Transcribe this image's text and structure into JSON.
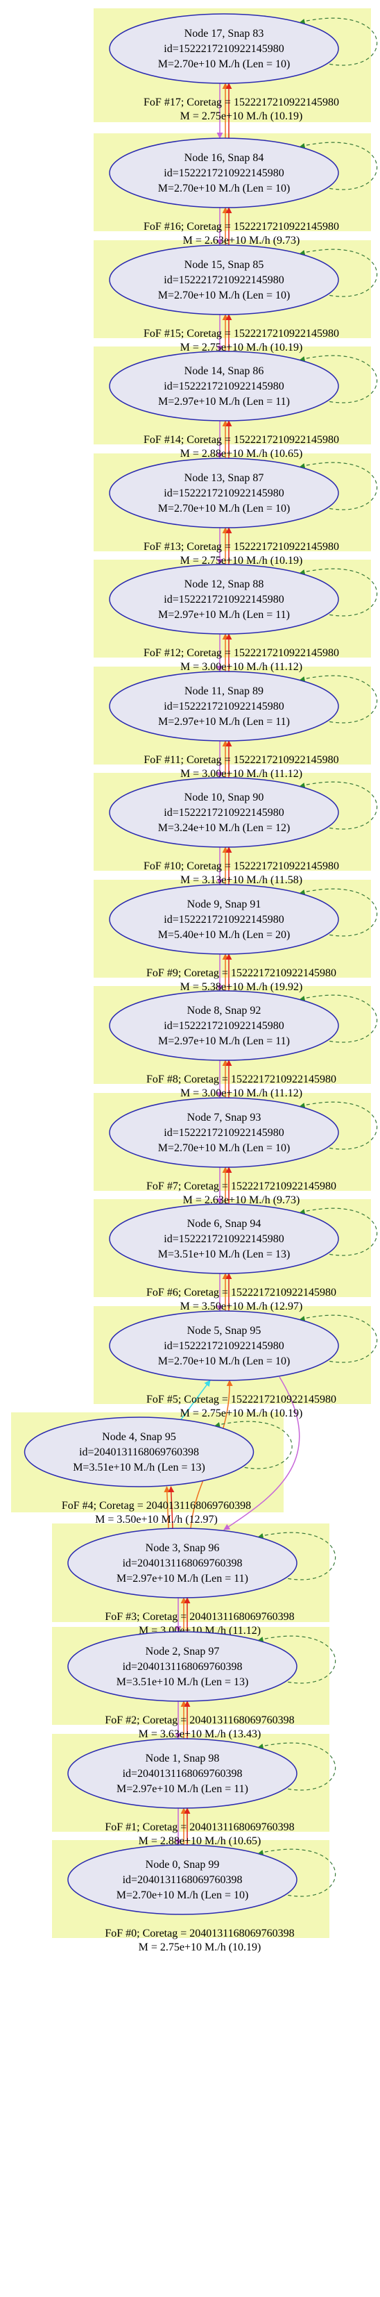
{
  "colors": {
    "cluster_fill": "#f3f8b6",
    "node_fill": "#e6e6f2",
    "node_stroke": "#2a2ab0",
    "edge_orange": "#ef6f1f",
    "edge_red": "#e0241b",
    "edge_violet": "#c766d8",
    "edge_green": "#2a8a2a",
    "edge_cyan": "#3adbe6",
    "self_loop": "#3a7a3a"
  },
  "nodes": [
    {
      "title": "Node 17, Snap 83",
      "id": "id=152221721092214598​0",
      "mass": "M=2.70e+10 M./h (Len = 10)",
      "fof": "FoF #17; Coretag = 152221721092214598​0",
      "fof_mass": "M = 2.75e+10 M./h (10.19)"
    },
    {
      "title": "Node 16, Snap 84",
      "id": "id=152221721092214598​0",
      "mass": "M=2.70e+10 M./h (Len = 10)",
      "fof": "FoF #16; Coretag = 152221721092214598​0",
      "fof_mass": "M = 2.63e+10 M./h (9.73)"
    },
    {
      "title": "Node 15, Snap 85",
      "id": "id=152221721092214598​0",
      "mass": "M=2.70e+10 M./h (Len = 10)",
      "fof": "FoF #15; Coretag = 152221721092214598​0",
      "fof_mass": "M = 2.75e+10 M./h (10.19)"
    },
    {
      "title": "Node 14, Snap 86",
      "id": "id=152221721092214598​0",
      "mass": "M=2.97e+10 M./h (Len = 11)",
      "fof": "FoF #14; Coretag = 152221721092214598​0",
      "fof_mass": "M = 2.88e+10 M./h (10.65)"
    },
    {
      "title": "Node 13, Snap 87",
      "id": "id=152221721092214598​0",
      "mass": "M=2.70e+10 M./h (Len = 10)",
      "fof": "FoF #13; Coretag = 152221721092214598​0",
      "fof_mass": "M = 2.75e+10 M./h (10.19)"
    },
    {
      "title": "Node 12, Snap 88",
      "id": "id=152221721092214598​0",
      "mass": "M=2.97e+10 M./h (Len = 11)",
      "fof": "FoF #12; Coretag = 152221721092214598​0",
      "fof_mass": "M = 3.00e+10 M./h (11.12)"
    },
    {
      "title": "Node 11, Snap 89",
      "id": "id=152221721092214598​0",
      "mass": "M=2.97e+10 M./h (Len = 11)",
      "fof": "FoF #11; Coretag = 152221721092214598​0",
      "fof_mass": "M = 3.00e+10 M./h (11.12)"
    },
    {
      "title": "Node 10, Snap 90",
      "id": "id=152221721092214598​0",
      "mass": "M=3.24e+10 M./h (Len = 12)",
      "fof": "FoF #10; Coretag = 152221721092214598​0",
      "fof_mass": "M = 3.13e+10 M./h (11.58)"
    },
    {
      "title": "Node 9, Snap 91",
      "id": "id=152221721092214598​0",
      "mass": "M=5.40e+10 M./h (Len = 20)",
      "fof": "FoF #9; Coretag = 152221721092214598​0",
      "fof_mass": "M = 5.38e+10 M./h (19.92)"
    },
    {
      "title": "Node 8, Snap 92",
      "id": "id=152221721092214598​0",
      "mass": "M=2.97e+10 M./h (Len = 11)",
      "fof": "FoF #8; Coretag = 152221721092214598​0",
      "fof_mass": "M = 3.00e+10 M./h (11.12)"
    },
    {
      "title": "Node 7, Snap 93",
      "id": "id=152221721092214598​0",
      "mass": "M=2.70e+10 M./h (Len = 10)",
      "fof": "FoF #7; Coretag = 152221721092214598​0",
      "fof_mass": "M = 2.63e+10 M./h (9.73)"
    },
    {
      "title": "Node 6, Snap 94",
      "id": "id=152221721092214598​0",
      "mass": "M=3.51e+10 M./h (Len = 13)",
      "fof": "FoF #6; Coretag = 152221721092214598​0",
      "fof_mass": "M = 3.50e+10 M./h (12.97)"
    },
    {
      "title": "Node 5, Snap 95",
      "id": "id=152221721092214598​0",
      "mass": "M=2.70e+10 M./h (Len = 10)",
      "fof": "FoF #5; Coretag = 152221721092214598​0",
      "fof_mass": "M = 2.75e+10 M./h (10.19)"
    },
    {
      "title": "Node 4, Snap 95",
      "id": "id=204013116806976039​8",
      "mass": "M=3.51e+10 M./h (Len = 13)",
      "fof": "FoF #4; Coretag = 204013116806976039​8",
      "fof_mass": "M = 3.50e+10 M./h (12.97)"
    },
    {
      "title": "Node 3, Snap 96",
      "id": "id=204013116806976039​8",
      "mass": "M=2.97e+10 M./h (Len = 11)",
      "fof": "FoF #3; Coretag = 204013116806976039​8",
      "fof_mass": "M = 3.00e+10 M./h (11.12)"
    },
    {
      "title": "Node 2, Snap 97",
      "id": "id=204013116806976039​8",
      "mass": "M=3.51e+10 M./h (Len = 13)",
      "fof": "FoF #2; Coretag = 204013116806976039​8",
      "fof_mass": "M = 3.63e+10 M./h (13.43)"
    },
    {
      "title": "Node 1, Snap 98",
      "id": "id=204013116806976039​8",
      "mass": "M=2.97e+10 M./h (Len = 11)",
      "fof": "FoF #1; Coretag = 204013116806976039​8",
      "fof_mass": "M = 2.88e+10 M./h (10.65)"
    },
    {
      "title": "Node 0, Snap 99",
      "id": "id=204013116806976039​8",
      "mass": "M=2.70e+10 M./h (Len = 10)",
      "fof": "FoF #0; Coretag = 204013116806976039​8",
      "fof_mass": "M = 2.75e+10 M./h (10.19)"
    }
  ]
}
